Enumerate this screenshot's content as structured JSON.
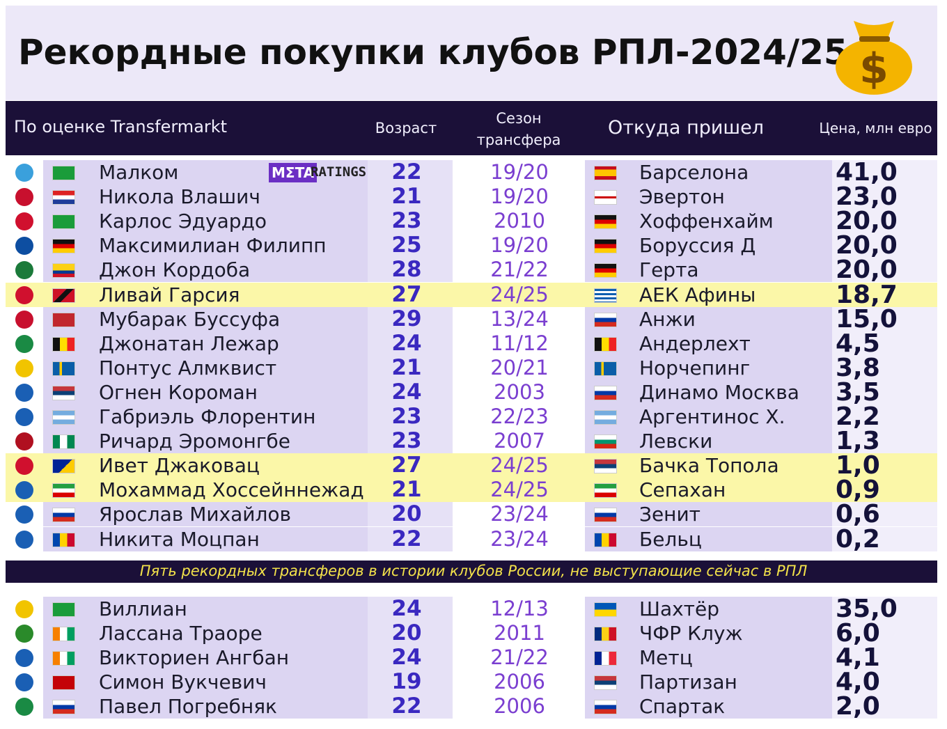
{
  "header": {
    "title": "Рекордные покупки клубов РПЛ-2024/25"
  },
  "columns": {
    "player": "По оценке Transfermarkt",
    "age": "Возраст",
    "season": "Сезон трансфера",
    "from": "Откуда пришел",
    "price": "Цена, млн евро"
  },
  "logo": {
    "meta": "MΣTA",
    "ratings": "RATINGS"
  },
  "table": {
    "rows": [
      [
        "Малком",
        22,
        "19/20",
        "Барселона",
        "41,0"
      ],
      [
        "Никола Влашич",
        21,
        "19/20",
        "Эвертон",
        "23,0"
      ],
      [
        "Карлос Эдуардо",
        23,
        "2010",
        "Хоффенхайм",
        "20,0"
      ],
      [
        "Максимилиан Филипп",
        25,
        "19/20",
        "Боруссия Д",
        "20,0"
      ],
      [
        "Джон Кордоба",
        28,
        "21/22",
        "Герта",
        "20,0"
      ],
      [
        "Ливай Гарсия",
        27,
        "24/25",
        "АЕК Афины",
        "18,7"
      ],
      [
        "Мубарак Буссуфа",
        29,
        "13/24",
        "Анжи",
        "15,0"
      ],
      [
        "Джонатан Лежар",
        24,
        "11/12",
        "Андерлехт",
        "4,5"
      ],
      [
        "Понтус Алмквист",
        21,
        "20/21",
        "Норчепинг",
        "3,8"
      ],
      [
        "Огнен Короман",
        24,
        "2003",
        "Динамо Москва",
        "3,5"
      ],
      [
        "Габриэль Флорентин",
        23,
        "22/23",
        "Аргентинос Х.",
        "2,2"
      ],
      [
        "Ричард Эромонгбе",
        23,
        "2007",
        "Левски",
        "1,3"
      ],
      [
        "Ивет Джаковац",
        27,
        "24/25",
        "Бачка Топола",
        "1,0"
      ],
      [
        "Мохаммад Хоссейннежад",
        21,
        "24/25",
        "Сепахан",
        "0,9"
      ],
      [
        "Ярослав Михайлов",
        20,
        "23/24",
        "Зенит",
        "0,6"
      ],
      [
        "Никита Моцпан",
        22,
        "23/24",
        "Бельц",
        "0,2"
      ]
    ]
  },
  "note": "Пять рекордных трансферов в истории клубов России, не выступающие сейчас в РПЛ",
  "table2": {
    "rows": [
      [
        "Виллиан",
        24,
        "12/13",
        "Шахтёр",
        "35,0"
      ],
      [
        "Лассана Траоре",
        20,
        "2011",
        "ЧФР Клуж",
        "6,0"
      ],
      [
        "Викториен Ангбан",
        24,
        "21/22",
        "Метц",
        "4,1"
      ],
      [
        "Симон Вукчевич",
        19,
        "2006",
        "Партизан",
        "4,0"
      ],
      [
        "Павел Погребняк",
        22,
        "2006",
        "Спартак",
        "2,0"
      ]
    ]
  }
}
